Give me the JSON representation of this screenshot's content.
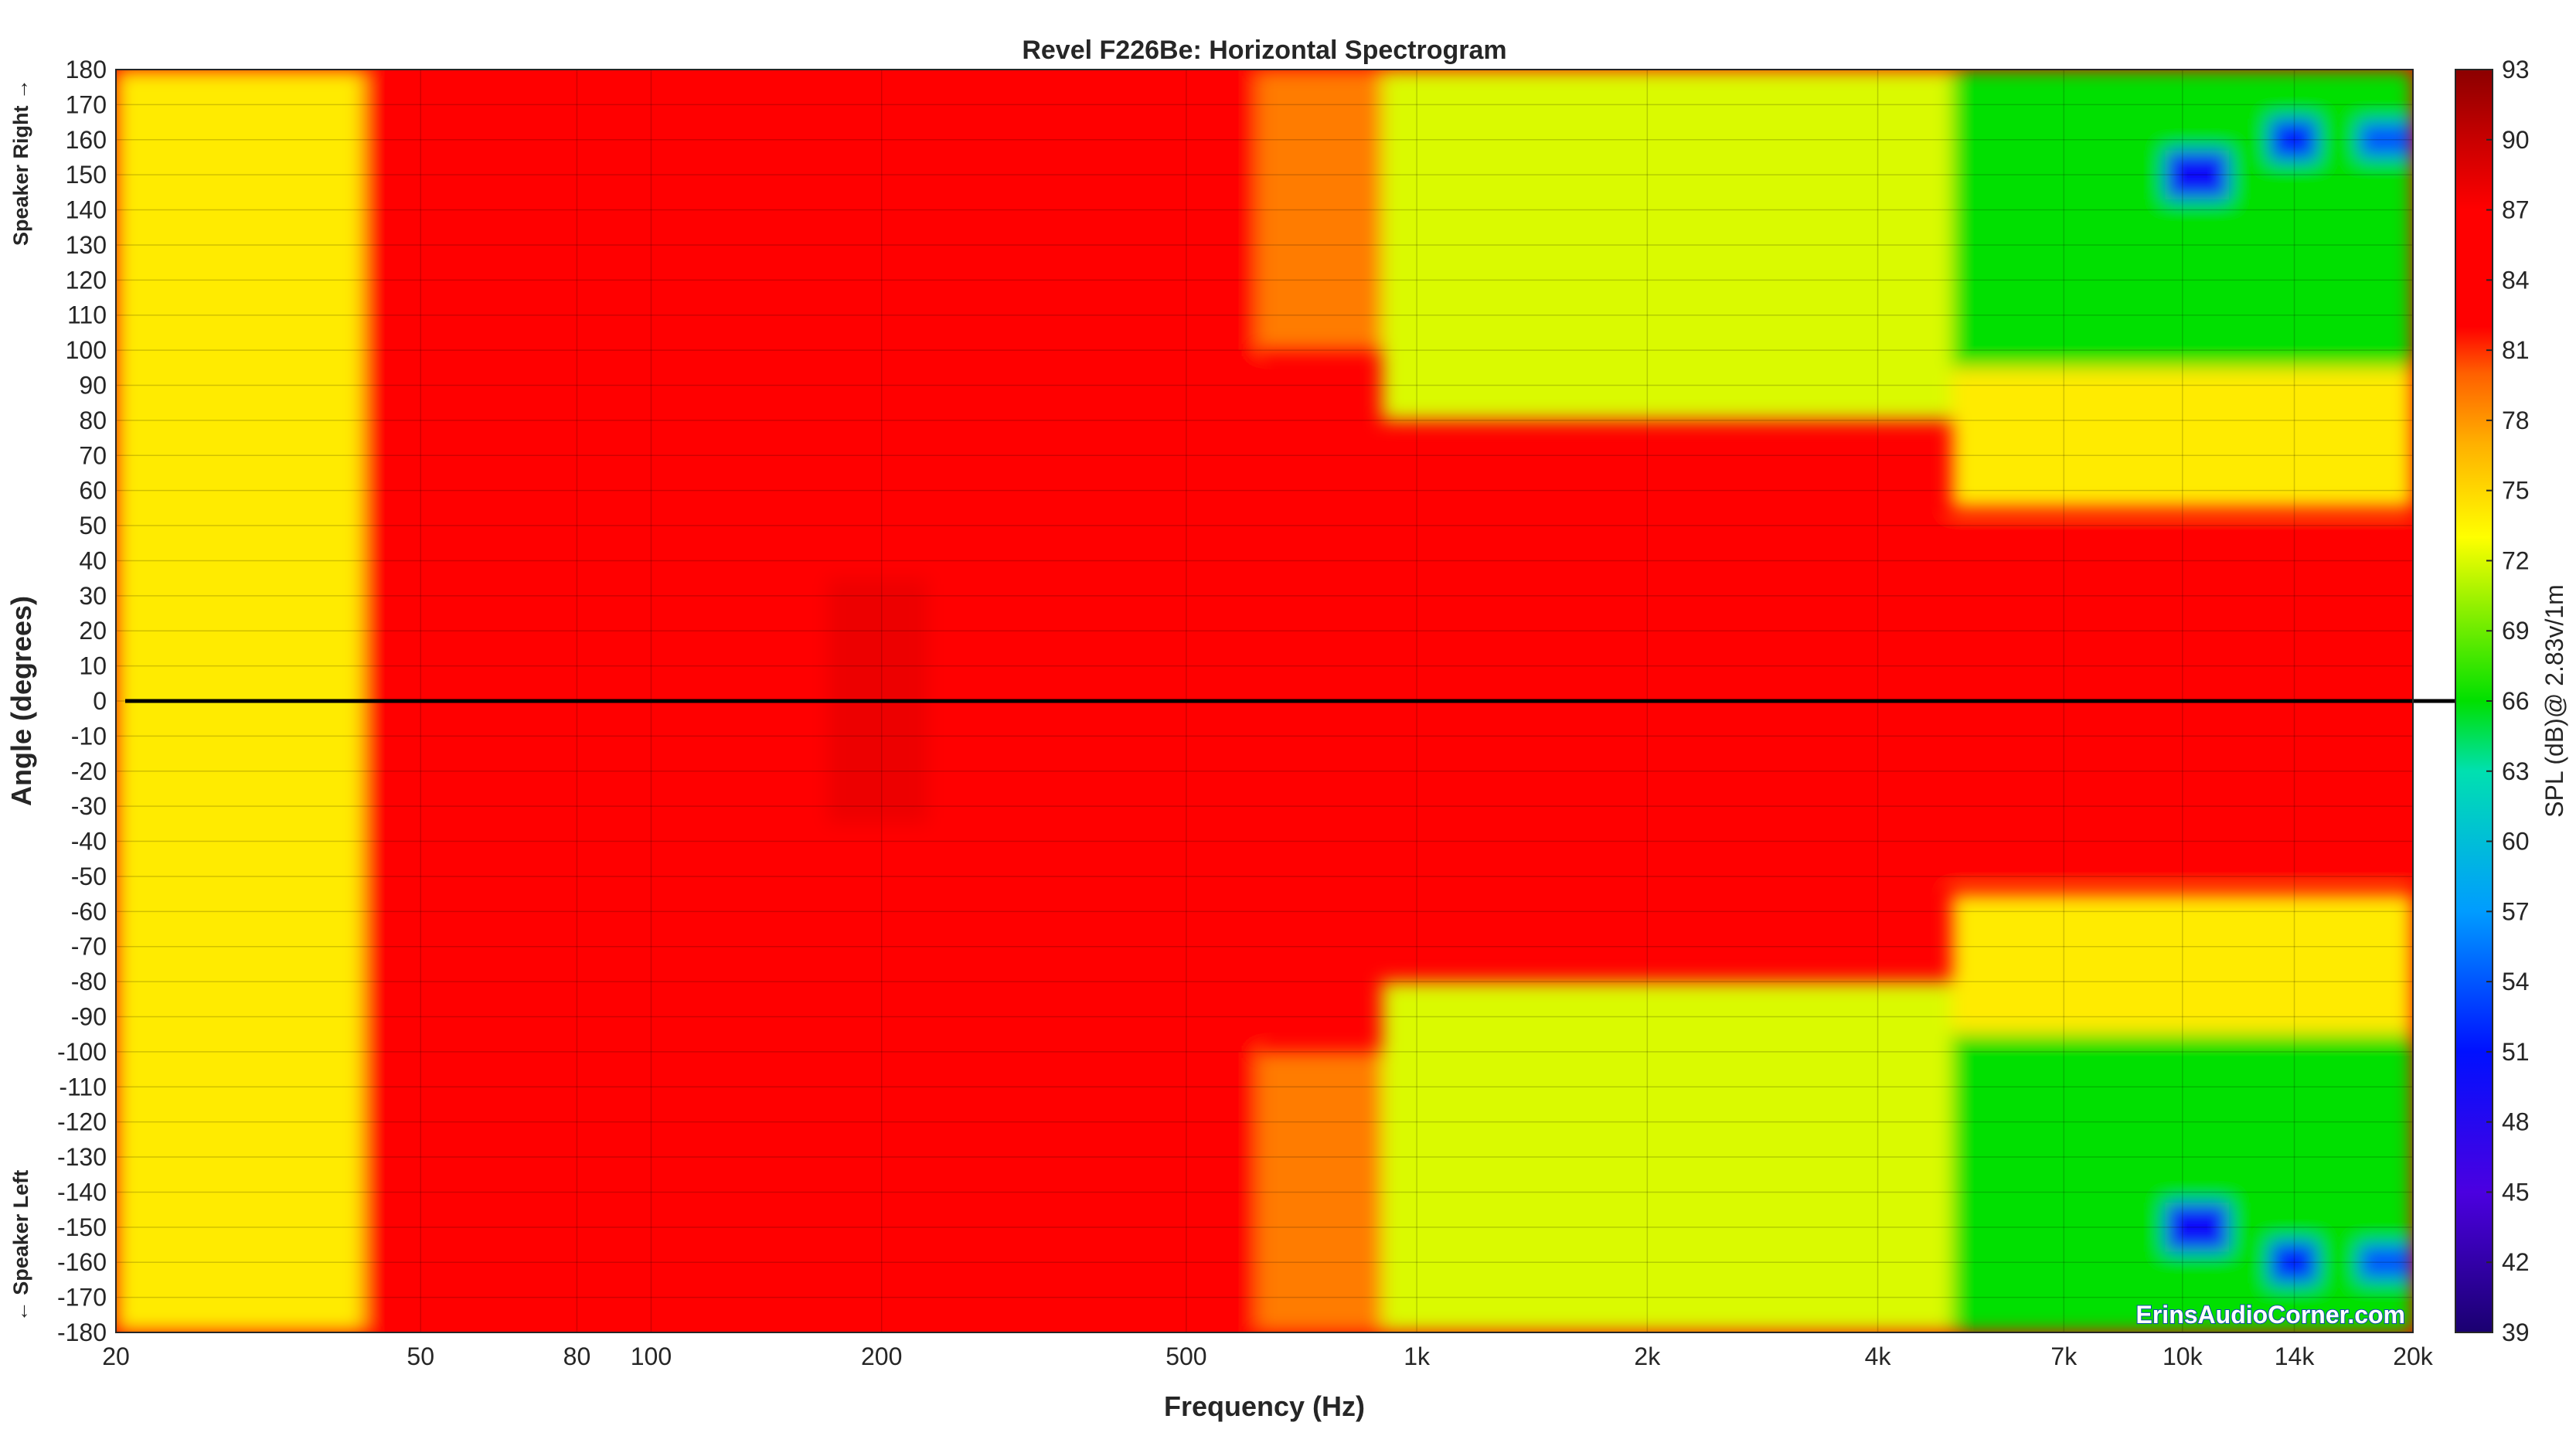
{
  "chart_data": {
    "type": "heatmap",
    "title": "Revel F226Be: Horizontal Spectrogram",
    "xlabel": "Frequency (Hz)",
    "ylabel": "Angle (degrees)",
    "ylabel_top": "Speaker Right →",
    "ylabel_bottom": "← Speaker Left",
    "colorbar_label": "SPL (dB)@ 2.83v/1m",
    "watermark": "ErinsAudioCorner.com",
    "x_scale": "log",
    "xlim": [
      20,
      20000
    ],
    "ylim": [
      -180,
      180
    ],
    "clim": [
      39,
      93
    ],
    "grid": true,
    "reference_line_angle": 0,
    "x_ticks": [
      {
        "value": 20,
        "label": "20"
      },
      {
        "value": 50,
        "label": "50"
      },
      {
        "value": 80,
        "label": "80"
      },
      {
        "value": 100,
        "label": "100"
      },
      {
        "value": 200,
        "label": "200"
      },
      {
        "value": 500,
        "label": "500"
      },
      {
        "value": 1000,
        "label": "1k"
      },
      {
        "value": 2000,
        "label": "2k"
      },
      {
        "value": 4000,
        "label": "4k"
      },
      {
        "value": 7000,
        "label": "7k"
      },
      {
        "value": 10000,
        "label": "10k"
      },
      {
        "value": 14000,
        "label": "14k"
      },
      {
        "value": 20000,
        "label": "20k"
      }
    ],
    "y_ticks": [
      "180",
      "170",
      "160",
      "150",
      "140",
      "130",
      "120",
      "110",
      "100",
      "90",
      "80",
      "70",
      "60",
      "50",
      "40",
      "30",
      "20",
      "10",
      "0",
      "-10",
      "-20",
      "-30",
      "-40",
      "-50",
      "-60",
      "-70",
      "-80",
      "-90",
      "-100",
      "-110",
      "-120",
      "-130",
      "-140",
      "-150",
      "-160",
      "-170",
      "-180"
    ],
    "colorbar_ticks": [
      "93",
      "90",
      "87",
      "84",
      "81",
      "78",
      "75",
      "72",
      "69",
      "66",
      "63",
      "60",
      "57",
      "54",
      "51",
      "48",
      "45",
      "42",
      "39"
    ],
    "colormap_stops": [
      {
        "value": 39,
        "color": "#1a0070"
      },
      {
        "value": 45,
        "color": "#4b00e0"
      },
      {
        "value": 51,
        "color": "#0010ff"
      },
      {
        "value": 57,
        "color": "#009cff"
      },
      {
        "value": 63,
        "color": "#00e0b0"
      },
      {
        "value": 66,
        "color": "#00e000"
      },
      {
        "value": 70,
        "color": "#90f000"
      },
      {
        "value": 73,
        "color": "#ffff00"
      },
      {
        "value": 77,
        "color": "#ffb000"
      },
      {
        "value": 80,
        "color": "#ff6000"
      },
      {
        "value": 82,
        "color": "#ff0000"
      },
      {
        "value": 87,
        "color": "#ff0000"
      },
      {
        "value": 90,
        "color": "#c80000"
      },
      {
        "value": 93,
        "color": "#8b0000"
      }
    ],
    "regions": [
      {
        "f_lo": 20,
        "f_hi": 42,
        "ang_lo": -180,
        "ang_hi": 180,
        "spl": 74
      },
      {
        "f_lo": 42,
        "f_hi": 620,
        "ang_lo": -180,
        "ang_hi": 180,
        "spl": 85
      },
      {
        "f_lo": 170,
        "f_hi": 230,
        "ang_lo": -35,
        "ang_hi": 35,
        "spl": 88
      },
      {
        "f_lo": 620,
        "f_hi": 20000,
        "ang_lo": -50,
        "ang_hi": 50,
        "spl": 85
      },
      {
        "f_lo": 620,
        "f_hi": 900,
        "ang_lo": 100,
        "ang_hi": 180,
        "spl": 79
      },
      {
        "f_lo": 900,
        "f_hi": 5000,
        "ang_lo": 80,
        "ang_hi": 180,
        "spl": 72
      },
      {
        "f_lo": 900,
        "f_hi": 5000,
        "ang_lo": -180,
        "ang_hi": -80,
        "spl": 72
      },
      {
        "f_lo": 5000,
        "f_hi": 20000,
        "ang_lo": 95,
        "ang_hi": 180,
        "spl": 66
      },
      {
        "f_lo": 5000,
        "f_hi": 20000,
        "ang_lo": -180,
        "ang_hi": -95,
        "spl": 66
      },
      {
        "f_lo": 620,
        "f_hi": 900,
        "ang_lo": -180,
        "ang_hi": -100,
        "spl": 79
      },
      {
        "f_lo": 5000,
        "f_hi": 20000,
        "ang_lo": 55,
        "ang_hi": 95,
        "spl": 74
      },
      {
        "f_lo": 5000,
        "f_hi": 20000,
        "ang_lo": -95,
        "ang_hi": -55,
        "spl": 74
      },
      {
        "f_lo": 9500,
        "f_hi": 11500,
        "ang_lo": 143,
        "ang_hi": 157,
        "spl": 50
      },
      {
        "f_lo": 9500,
        "f_hi": 11500,
        "ang_lo": -157,
        "ang_hi": -143,
        "spl": 50
      },
      {
        "f_lo": 13000,
        "f_hi": 15000,
        "ang_lo": 154,
        "ang_hi": 166,
        "spl": 52
      },
      {
        "f_lo": 13000,
        "f_hi": 15000,
        "ang_lo": -166,
        "ang_hi": -154,
        "spl": 52
      },
      {
        "f_lo": 17000,
        "f_hi": 20000,
        "ang_lo": 155,
        "ang_hi": 165,
        "spl": 54
      },
      {
        "f_lo": 17000,
        "f_hi": 20000,
        "ang_lo": -165,
        "ang_hi": -155,
        "spl": 54
      }
    ]
  }
}
